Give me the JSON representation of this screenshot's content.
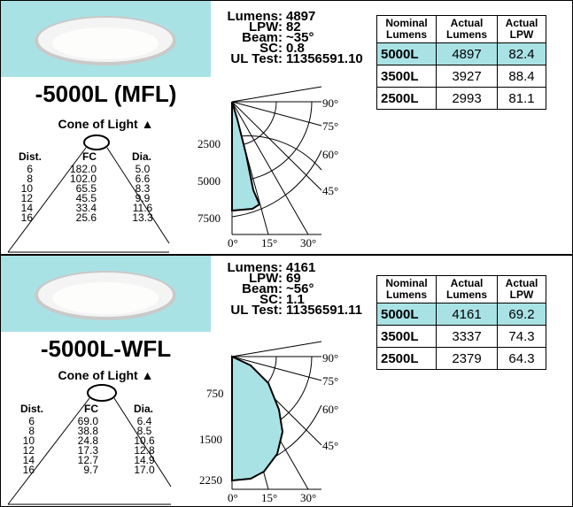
{
  "panels": [
    {
      "model": "-5000L (MFL)",
      "cone_title": "Cone of Light",
      "cone_arrow": "▲",
      "cone_headers": {
        "dist": "Dist.",
        "fc": "FC",
        "dia": "Dia."
      },
      "cone_rows": [
        {
          "dist": "6",
          "fc": "182.0",
          "dia": "5.0"
        },
        {
          "dist": "8",
          "fc": "102.0",
          "dia": "6.6"
        },
        {
          "dist": "10",
          "fc": "65.5",
          "dia": "8.3"
        },
        {
          "dist": "12",
          "fc": "45.5",
          "dia": "9.9"
        },
        {
          "dist": "14",
          "fc": "33.4",
          "dia": "11.6"
        },
        {
          "dist": "16",
          "fc": "25.6",
          "dia": "13.3"
        }
      ],
      "specs": [
        {
          "label": "Lumens:",
          "value": "4897"
        },
        {
          "label": "LPW:",
          "value": "82"
        },
        {
          "label": "Beam:",
          "value": "~35°"
        },
        {
          "label": "SC:",
          "value": "0.8"
        },
        {
          "label": "UL Test:",
          "value": "11356591.10"
        }
      ],
      "table": {
        "headers": [
          "Nominal Lumens",
          "Actual Lumens",
          "Actual LPW"
        ],
        "rows": [
          {
            "nominal": "5000L",
            "actual": "4897",
            "lpw": "82.4",
            "highlight": true
          },
          {
            "nominal": "3500L",
            "actual": "3927",
            "lpw": "88.4",
            "highlight": false
          },
          {
            "nominal": "2500L",
            "actual": "2993",
            "lpw": "81.1",
            "highlight": false
          }
        ]
      },
      "polar": {
        "radial_labels": [
          "2500",
          "5000",
          "7500"
        ],
        "angle_labels": [
          "90°",
          "75°",
          "60°",
          "45°"
        ],
        "bottom_labels": [
          "0°",
          "15°",
          "30°"
        ]
      }
    },
    {
      "model": "-5000L-WFL",
      "cone_title": "Cone of Light",
      "cone_arrow": "▲",
      "cone_headers": {
        "dist": "Dist.",
        "fc": "FC",
        "dia": "Dia."
      },
      "cone_rows": [
        {
          "dist": "6",
          "fc": "69.0",
          "dia": "6.4"
        },
        {
          "dist": "8",
          "fc": "38.8",
          "dia": "8.5"
        },
        {
          "dist": "10",
          "fc": "24.8",
          "dia": "10.6"
        },
        {
          "dist": "12",
          "fc": "17.3",
          "dia": "12.8"
        },
        {
          "dist": "14",
          "fc": "12.7",
          "dia": "14.9"
        },
        {
          "dist": "16",
          "fc": "9.7",
          "dia": "17.0"
        }
      ],
      "specs": [
        {
          "label": "Lumens:",
          "value": "4161"
        },
        {
          "label": "LPW:",
          "value": "69"
        },
        {
          "label": "Beam:",
          "value": "~56°"
        },
        {
          "label": "SC:",
          "value": "1.1"
        },
        {
          "label": "UL Test:",
          "value": "11356591.11"
        }
      ],
      "table": {
        "headers": [
          "Nominal Lumens",
          "Actual Lumens",
          "Actual LPW"
        ],
        "rows": [
          {
            "nominal": "5000L",
            "actual": "4161",
            "lpw": "69.2",
            "highlight": true
          },
          {
            "nominal": "3500L",
            "actual": "3337",
            "lpw": "74.3",
            "highlight": false
          },
          {
            "nominal": "2500L",
            "actual": "2379",
            "lpw": "64.3",
            "highlight": false
          }
        ]
      },
      "polar": {
        "radial_labels": [
          "750",
          "1500",
          "2250"
        ],
        "angle_labels": [
          "90°",
          "75°",
          "60°",
          "45°"
        ],
        "bottom_labels": [
          "0°",
          "15°",
          "30°"
        ]
      }
    }
  ],
  "colors": {
    "highlight": "#a9e2e5",
    "distribution_fill": "#a9e2e5"
  }
}
